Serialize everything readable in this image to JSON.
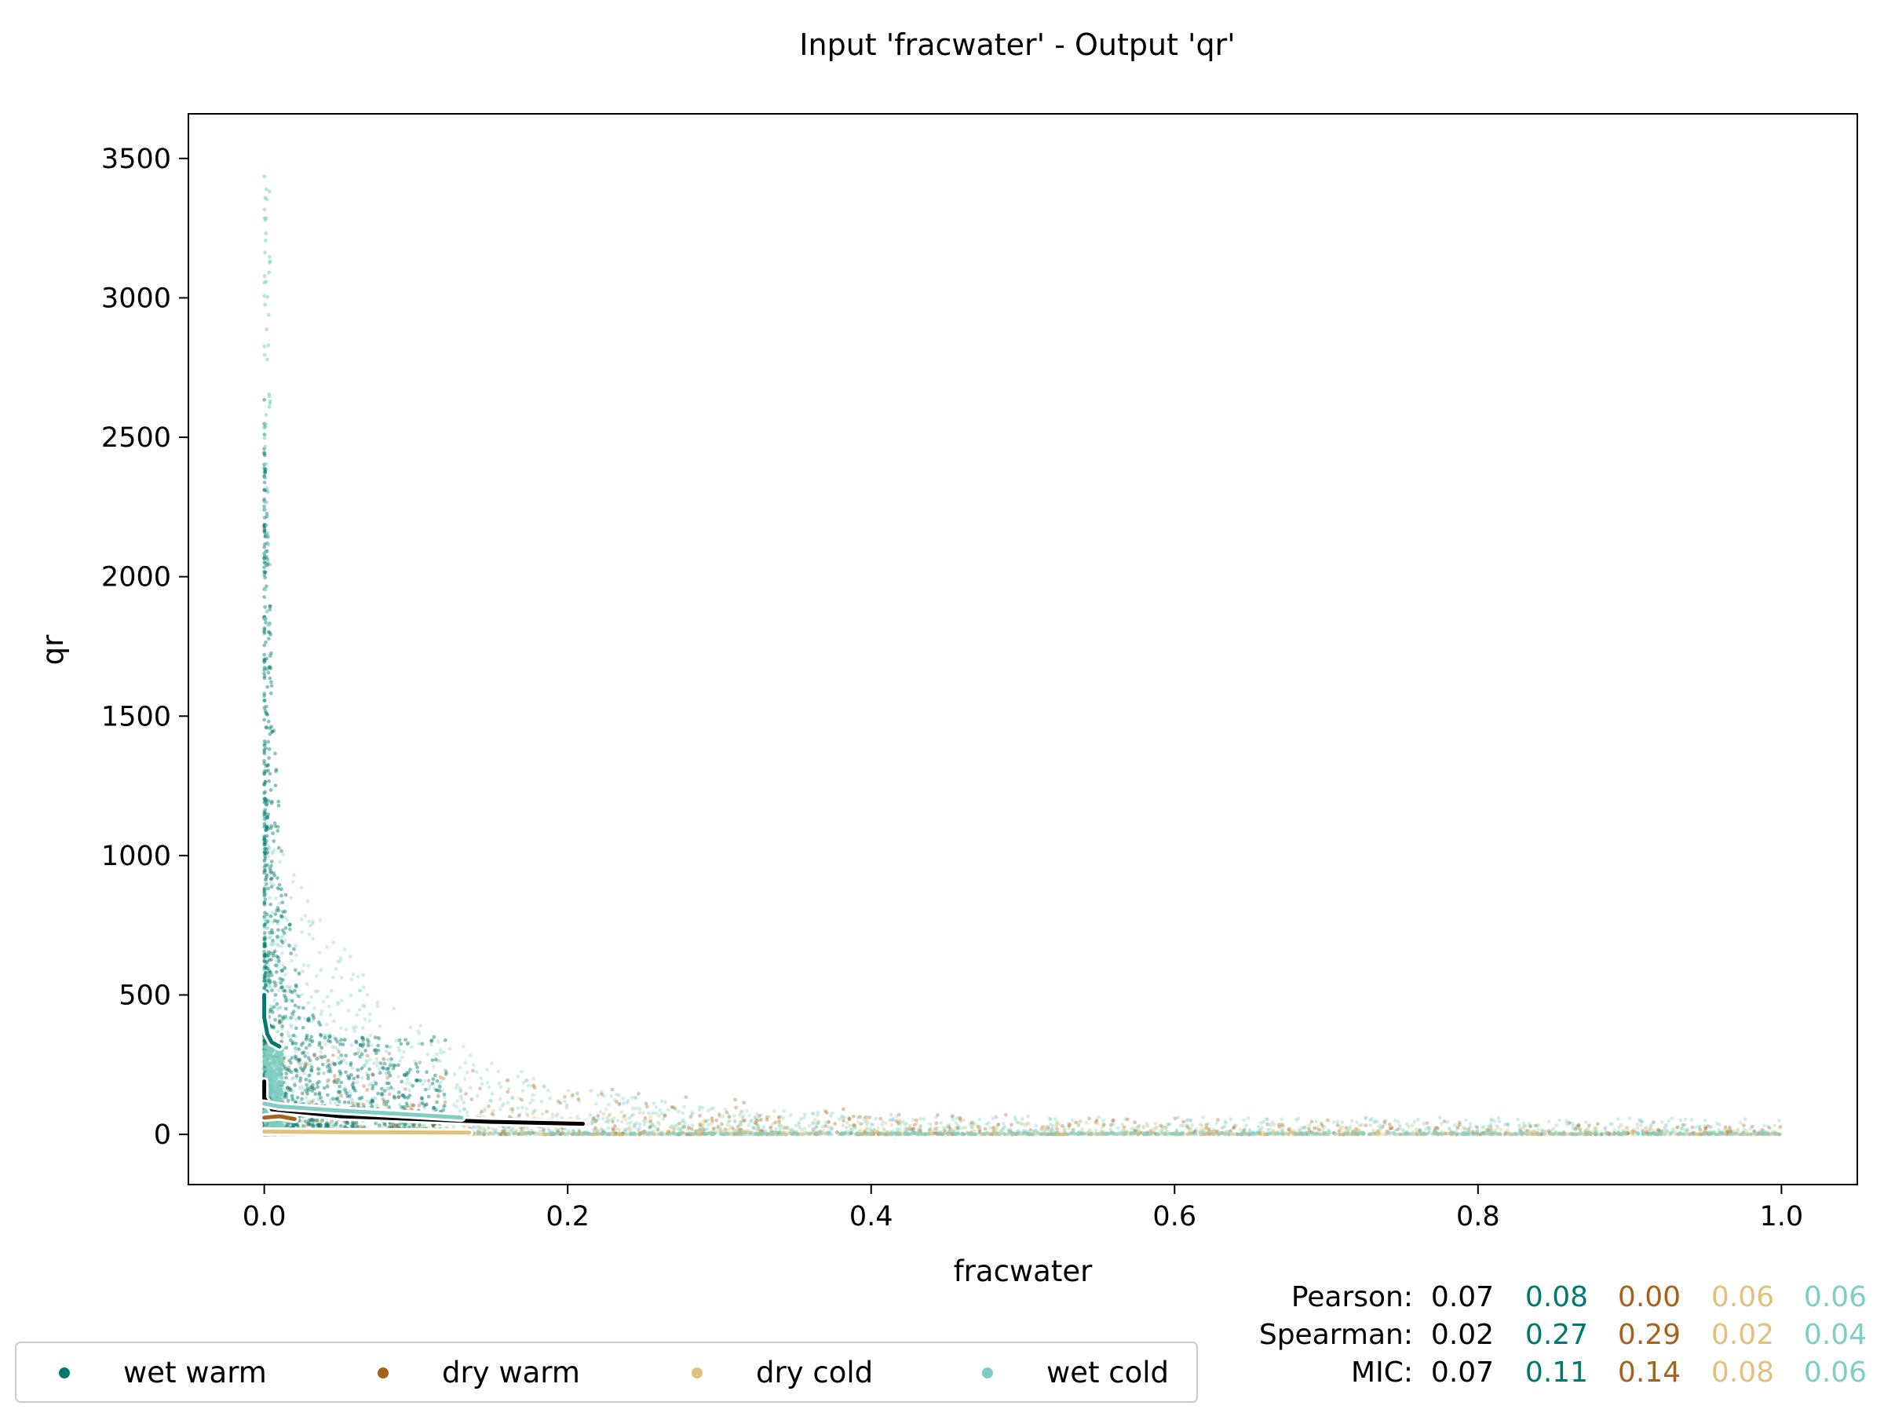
{
  "chart_data": {
    "type": "scatter",
    "title": "Input 'fracwater' - Output 'qr'",
    "xlabel": "fracwater",
    "ylabel": "qr",
    "xlim": [
      -0.05,
      1.05
    ],
    "ylim": [
      -180,
      3660
    ],
    "xticks": [
      0.0,
      0.2,
      0.4,
      0.6,
      0.8,
      1.0
    ],
    "xtick_labels": [
      "0.0",
      "0.2",
      "0.4",
      "0.6",
      "0.8",
      "1.0"
    ],
    "yticks": [
      0,
      500,
      1000,
      1500,
      2000,
      2500,
      3000,
      3500
    ],
    "ytick_labels": [
      "0",
      "500",
      "1000",
      "1500",
      "2000",
      "2500",
      "3000",
      "3500"
    ],
    "grid": false,
    "legend_position": "bottom-left",
    "series": [
      {
        "name": "wet warm",
        "color": "#01796F",
        "trend": [
          [
            0.0,
            500
          ],
          [
            0.0,
            420
          ],
          [
            0.002,
            360
          ],
          [
            0.005,
            330
          ],
          [
            0.01,
            315
          ]
        ]
      },
      {
        "name": "dry warm",
        "color": "#A6611A",
        "trend": [
          [
            0.0,
            60
          ],
          [
            0.01,
            65
          ],
          [
            0.02,
            55
          ]
        ]
      },
      {
        "name": "dry cold",
        "color": "#DFC27D",
        "trend": [
          [
            0.0,
            10
          ],
          [
            0.05,
            8
          ],
          [
            0.1,
            7
          ],
          [
            0.135,
            6
          ]
        ]
      },
      {
        "name": "wet cold",
        "color": "#80CDC1",
        "trend": [
          [
            0.0,
            110
          ],
          [
            0.01,
            100
          ],
          [
            0.05,
            85
          ],
          [
            0.1,
            70
          ],
          [
            0.13,
            60
          ]
        ]
      }
    ],
    "overall_trend": {
      "color": "#000000",
      "points": [
        [
          0.0,
          190
        ],
        [
          0.0,
          130
        ],
        [
          0.005,
          90
        ],
        [
          0.05,
          65
        ],
        [
          0.1,
          55
        ],
        [
          0.15,
          45
        ],
        [
          0.21,
          38
        ]
      ]
    },
    "stats": {
      "rows": [
        {
          "label": "Pearson:",
          "values": [
            "0.07",
            "0.08",
            "0.00",
            "0.06",
            "0.06"
          ]
        },
        {
          "label": "Spearman:",
          "values": [
            "0.02",
            "0.27",
            "0.29",
            "0.02",
            "0.04"
          ]
        },
        {
          "label": "MIC:",
          "values": [
            "0.07",
            "0.11",
            "0.14",
            "0.08",
            "0.06"
          ]
        }
      ],
      "colors": [
        "#000000",
        "#01796F",
        "#A6611A",
        "#DFC27D",
        "#80CDC1"
      ]
    }
  }
}
